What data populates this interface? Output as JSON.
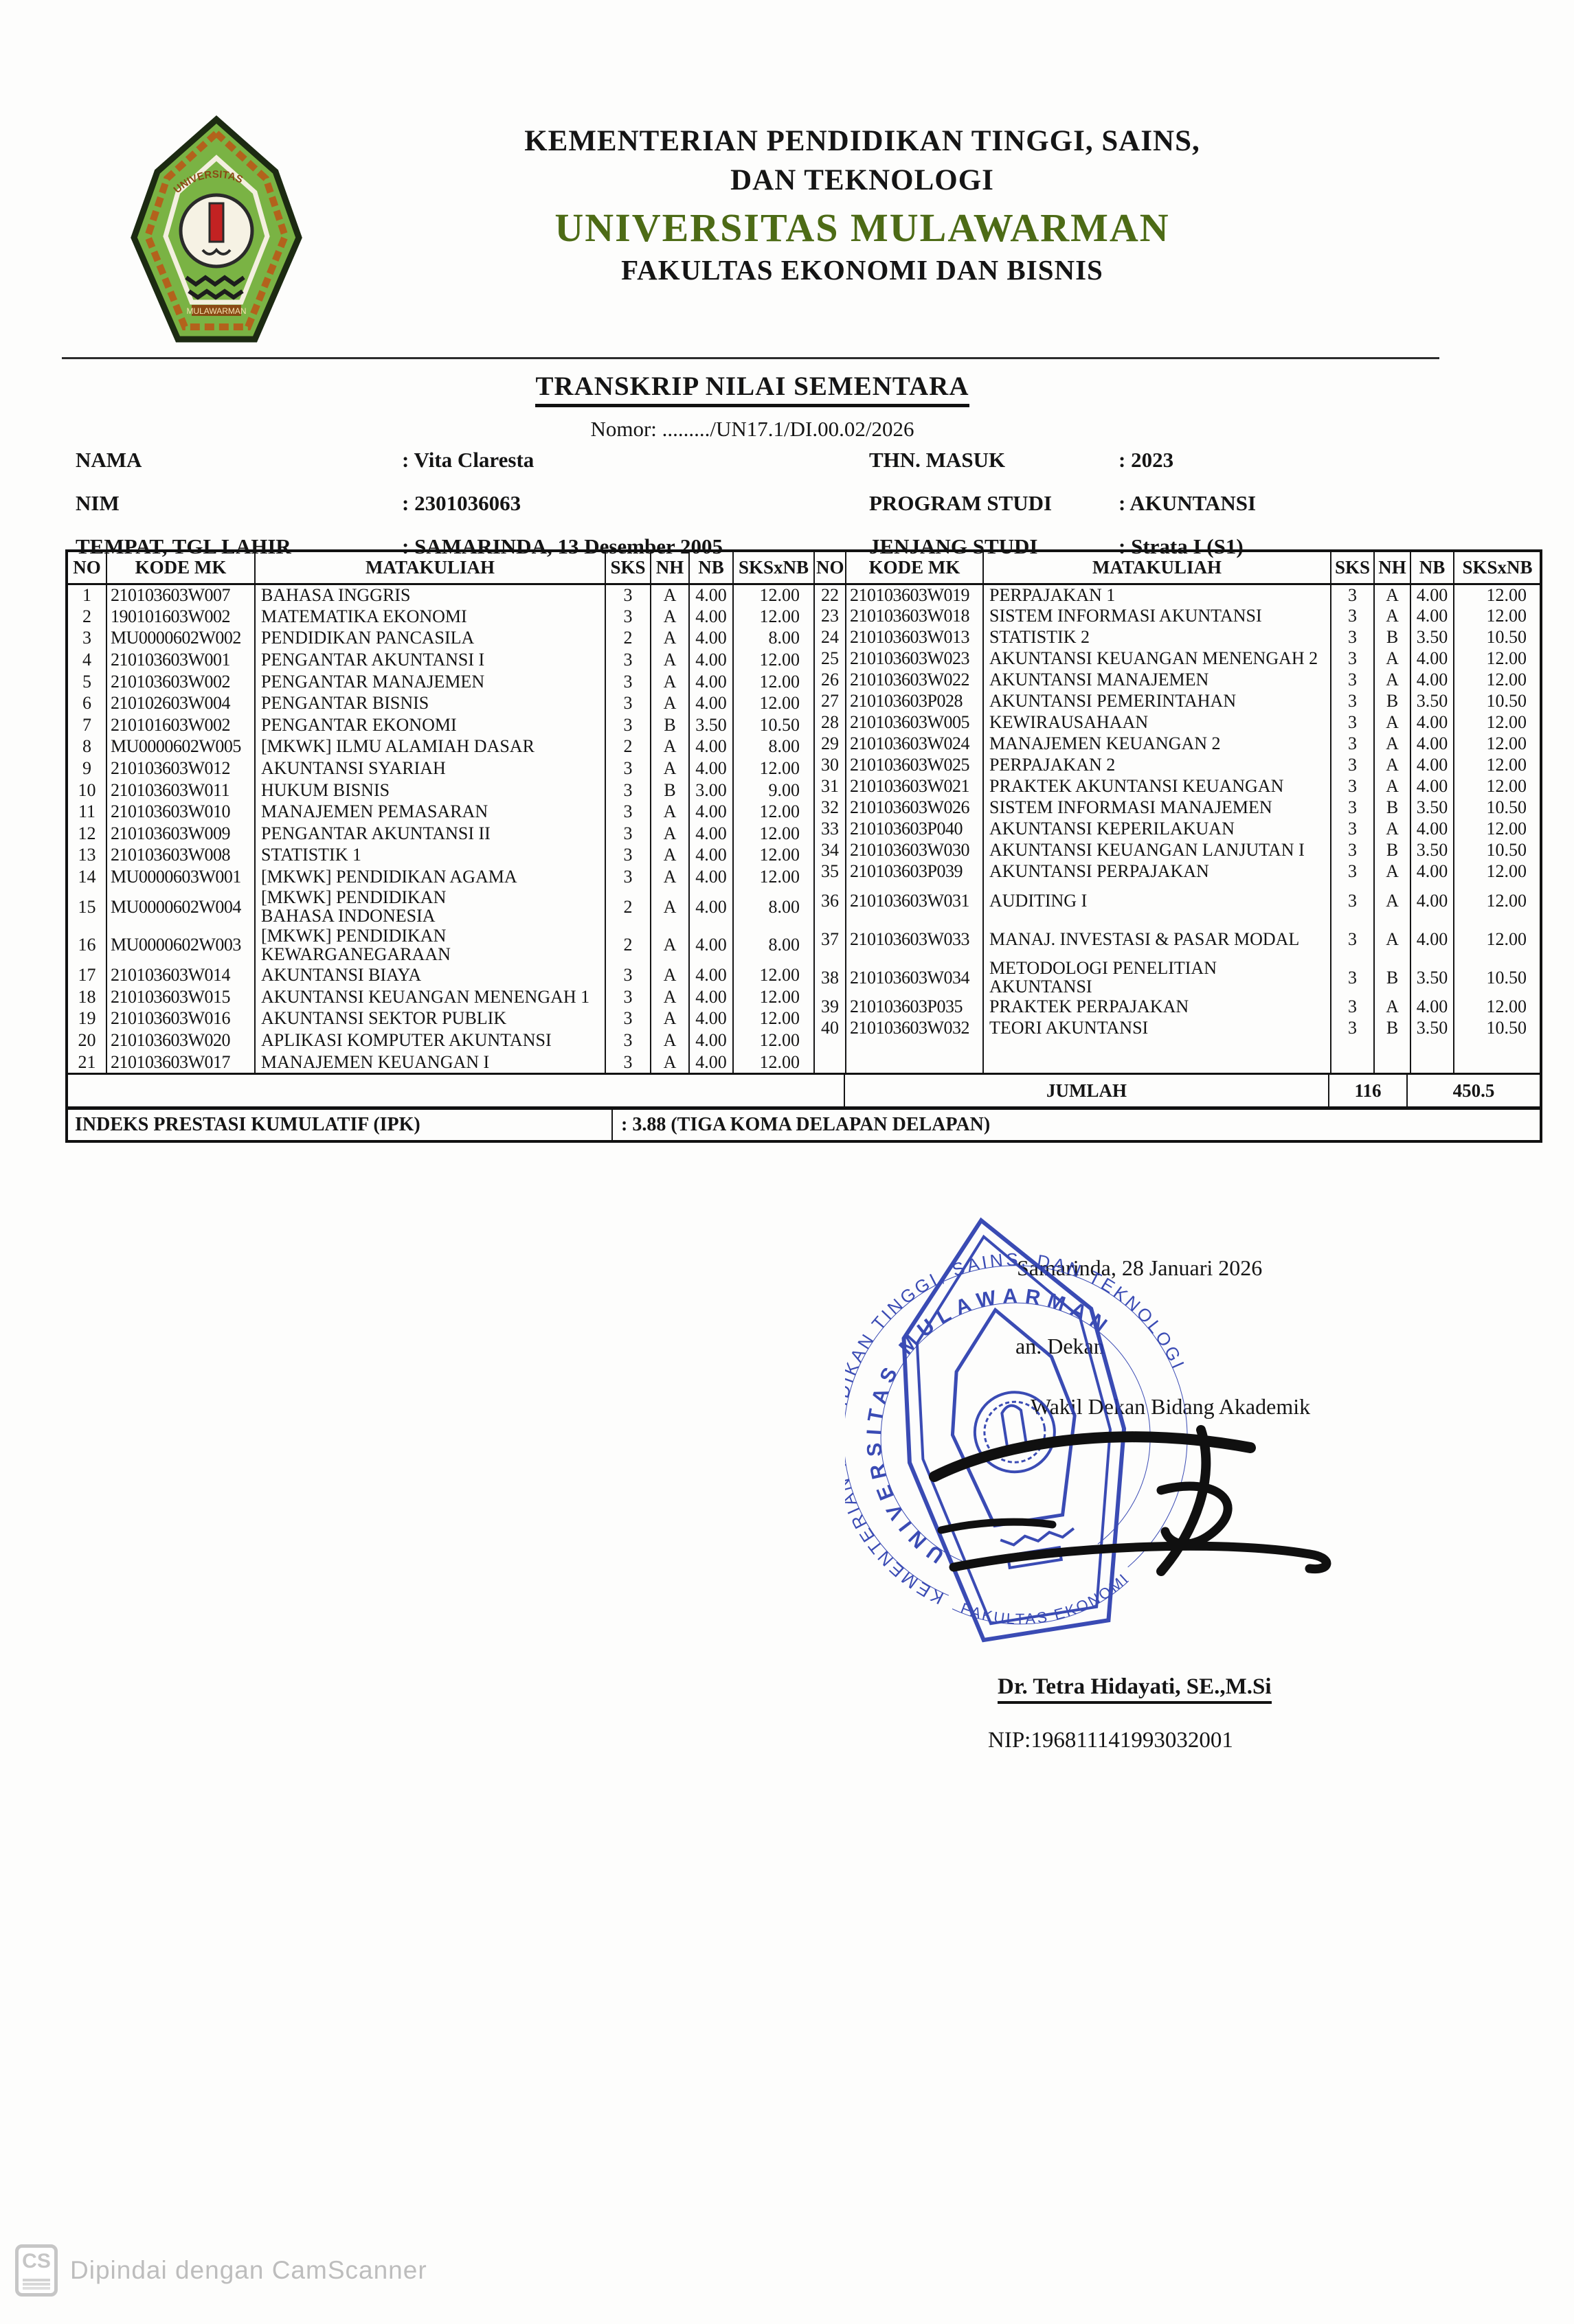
{
  "header": {
    "ministry_line1": "KEMENTERIAN PENDIDIKAN TINGGI, SAINS,",
    "ministry_line2": "DAN TEKNOLOGI",
    "university": "UNIVERSITAS MULAWARMAN",
    "faculty": "FAKULTAS EKONOMI DAN BISNIS",
    "logo_band_top": "UNIVERSITAS",
    "logo_band_bottom": "MULAWARMAN"
  },
  "title": "TRANSKRIP NILAI SEMENTARA",
  "nomor": "Nomor: ........./UN17.1/DI.00.02/2026",
  "student": {
    "nama_label": "NAMA",
    "nama_value": ": Vita Claresta",
    "nim_label": "NIM",
    "nim_value": ": 2301036063",
    "tempat_label": "TEMPAT, TGL LAHIR",
    "tempat_value": ": SAMARINDA, 13 Desember 2005",
    "thn_label": "THN. MASUK",
    "thn_value": ": 2023",
    "prodi_label": "PROGRAM STUDI",
    "prodi_value": ": AKUNTANSI",
    "jenjang_label": "JENJANG STUDI",
    "jenjang_value": ": Strata I (S1)"
  },
  "table": {
    "headers": [
      "NO",
      "KODE MK",
      "MATAKULIAH",
      "SKS",
      "NH",
      "NB",
      "SKSxNB"
    ],
    "left_rows": [
      [
        "1",
        "210103603W007",
        "BAHASA INGGRIS",
        "3",
        "A",
        "4.00",
        "12.00"
      ],
      [
        "2",
        "190101603W002",
        "MATEMATIKA EKONOMI",
        "3",
        "A",
        "4.00",
        "12.00"
      ],
      [
        "3",
        "MU0000602W002",
        "PENDIDIKAN PANCASILA",
        "2",
        "A",
        "4.00",
        "8.00"
      ],
      [
        "4",
        "210103603W001",
        "PENGANTAR AKUNTANSI I",
        "3",
        "A",
        "4.00",
        "12.00"
      ],
      [
        "5",
        "210103603W002",
        "PENGANTAR MANAJEMEN",
        "3",
        "A",
        "4.00",
        "12.00"
      ],
      [
        "6",
        "210102603W004",
        "PENGANTAR BISNIS",
        "3",
        "A",
        "4.00",
        "12.00"
      ],
      [
        "7",
        "210101603W002",
        "PENGANTAR EKONOMI",
        "3",
        "B",
        "3.50",
        "10.50"
      ],
      [
        "8",
        "MU0000602W005",
        "[MKWK] ILMU ALAMIAH DASAR",
        "2",
        "A",
        "4.00",
        "8.00"
      ],
      [
        "9",
        "210103603W012",
        "AKUNTANSI SYARIAH",
        "3",
        "A",
        "4.00",
        "12.00"
      ],
      [
        "10",
        "210103603W011",
        "HUKUM BISNIS",
        "3",
        "B",
        "3.00",
        "9.00"
      ],
      [
        "11",
        "210103603W010",
        "MANAJEMEN PEMASARAN",
        "3",
        "A",
        "4.00",
        "12.00"
      ],
      [
        "12",
        "210103603W009",
        "PENGANTAR AKUNTANSI II",
        "3",
        "A",
        "4.00",
        "12.00"
      ],
      [
        "13",
        "210103603W008",
        "STATISTIK 1",
        "3",
        "A",
        "4.00",
        "12.00"
      ],
      [
        "14",
        "MU0000603W001",
        "[MKWK] PENDIDIKAN AGAMA",
        "3",
        "A",
        "4.00",
        "12.00"
      ],
      [
        "15",
        "MU0000602W004",
        "[MKWK] PENDIDIKAN BAHASA INDONESIA",
        "2",
        "A",
        "4.00",
        "8.00"
      ],
      [
        "16",
        "MU0000602W003",
        "[MKWK] PENDIDIKAN KEWARGANEGARAAN",
        "2",
        "A",
        "4.00",
        "8.00"
      ],
      [
        "17",
        "210103603W014",
        "AKUNTANSI BIAYA",
        "3",
        "A",
        "4.00",
        "12.00"
      ],
      [
        "18",
        "210103603W015",
        "AKUNTANSI KEUANGAN MENENGAH 1",
        "3",
        "A",
        "4.00",
        "12.00"
      ],
      [
        "19",
        "210103603W016",
        "AKUNTANSI SEKTOR PUBLIK",
        "3",
        "A",
        "4.00",
        "12.00"
      ],
      [
        "20",
        "210103603W020",
        "APLIKASI KOMPUTER AKUNTANSI",
        "3",
        "A",
        "4.00",
        "12.00"
      ],
      [
        "21",
        "210103603W017",
        "MANAJEMEN KEUANGAN I",
        "3",
        "A",
        "4.00",
        "12.00"
      ]
    ],
    "right_rows": [
      [
        "22",
        "210103603W019",
        "PERPAJAKAN 1",
        "3",
        "A",
        "4.00",
        "12.00"
      ],
      [
        "23",
        "210103603W018",
        "SISTEM INFORMASI AKUNTANSI",
        "3",
        "A",
        "4.00",
        "12.00"
      ],
      [
        "24",
        "210103603W013",
        "STATISTIK 2",
        "3",
        "B",
        "3.50",
        "10.50"
      ],
      [
        "25",
        "210103603W023",
        "AKUNTANSI KEUANGAN MENENGAH 2",
        "3",
        "A",
        "4.00",
        "12.00"
      ],
      [
        "26",
        "210103603W022",
        "AKUNTANSI MANAJEMEN",
        "3",
        "A",
        "4.00",
        "12.00"
      ],
      [
        "27",
        "210103603P028",
        "AKUNTANSI PEMERINTAHAN",
        "3",
        "B",
        "3.50",
        "10.50"
      ],
      [
        "28",
        "210103603W005",
        "KEWIRAUSAHAAN",
        "3",
        "A",
        "4.00",
        "12.00"
      ],
      [
        "29",
        "210103603W024",
        "MANAJEMEN KEUANGAN 2",
        "3",
        "A",
        "4.00",
        "12.00"
      ],
      [
        "30",
        "210103603W025",
        "PERPAJAKAN 2",
        "3",
        "A",
        "4.00",
        "12.00"
      ],
      [
        "31",
        "210103603W021",
        "PRAKTEK AKUNTANSI KEUANGAN",
        "3",
        "A",
        "4.00",
        "12.00"
      ],
      [
        "32",
        "210103603W026",
        "SISTEM INFORMASI MANAJEMEN",
        "3",
        "B",
        "3.50",
        "10.50"
      ],
      [
        "33",
        "210103603P040",
        "AKUNTANSI KEPERILAKUAN",
        "3",
        "A",
        "4.00",
        "12.00"
      ],
      [
        "34",
        "210103603W030",
        "AKUNTANSI KEUANGAN LANJUTAN I",
        "3",
        "B",
        "3.50",
        "10.50"
      ],
      [
        "35",
        "210103603P039",
        "AKUNTANSI PERPAJAKAN",
        "3",
        "A",
        "4.00",
        "12.00"
      ],
      [
        "36",
        "210103603W031",
        "AUDITING I",
        "3",
        "A",
        "4.00",
        "12.00"
      ],
      [
        "37",
        "210103603W033",
        "MANAJ. INVESTASI & PASAR MODAL",
        "3",
        "A",
        "4.00",
        "12.00"
      ],
      [
        "38",
        "210103603W034",
        "METODOLOGI PENELITIAN AKUNTANSI",
        "3",
        "B",
        "3.50",
        "10.50"
      ],
      [
        "39",
        "210103603P035",
        "PRAKTEK PERPAJAKAN",
        "3",
        "A",
        "4.00",
        "12.00"
      ],
      [
        "40",
        "210103603W032",
        "TEORI AKUNTANSI",
        "3",
        "B",
        "3.50",
        "10.50"
      ]
    ],
    "jumlah_label": "JUMLAH",
    "jumlah_sks": "116",
    "jumlah_sksxnb": "450.5"
  },
  "ipk": {
    "label": "INDEKS PRESTASI KUMULATIF (IPK)",
    "value": ": 3.88 (TIGA KOMA DELAPAN DELAPAN)"
  },
  "signature": {
    "date": "Samarinda, 28 Januari 2026",
    "an": "an. Dekan",
    "role": "Wakil Dekan Bidang Akademik",
    "name": "Dr. Tetra Hidayati, SE.,M.Si",
    "nip": "NIP:196811141993032001",
    "stamp_text_outer": "KEMENTERIAN PENDIDIKAN TINGGI, SAINS, DAN TEKNOLOGI",
    "stamp_text_inner": "UNIVERSITAS MULAWARMAN",
    "stamp_text_bottom": "FAKULTAS EKONOMI"
  },
  "footer": {
    "badge": "CS",
    "text": "Dipindai dengan CamScanner"
  },
  "colors": {
    "university_green": "#4d6b16",
    "stamp_blue": "#2a3cae",
    "logo_green": "#7ab344",
    "footer_gray": "#bdbdbd"
  }
}
